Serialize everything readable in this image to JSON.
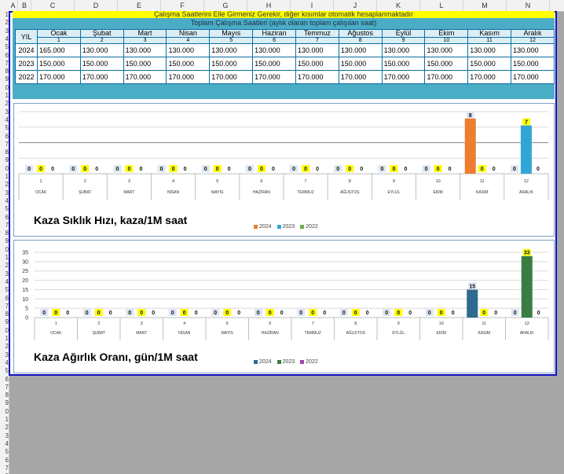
{
  "sheet": {
    "columns": [
      "A",
      "B",
      "C",
      "D",
      "E",
      "F",
      "G",
      "H",
      "I",
      "J",
      "K",
      "L",
      "M",
      "N"
    ],
    "rows": [
      "1",
      "2",
      "3",
      "4",
      "5",
      "6",
      "7",
      "8",
      "9",
      "0",
      "1",
      "2",
      "3",
      "4",
      "5",
      "6",
      "7",
      "8",
      "9",
      "0",
      "1",
      "2",
      "3",
      "4",
      "5",
      "6",
      "7",
      "8",
      "9",
      "0",
      "1",
      "2",
      "3",
      "4",
      "5",
      "6",
      "7",
      "8",
      "9",
      "0",
      "1",
      "2",
      "3",
      "4",
      "5",
      "6",
      "7",
      "8",
      "9",
      "0",
      "1",
      "2",
      "3",
      "4",
      "5",
      "6",
      "7",
      "8",
      "9"
    ]
  },
  "header": {
    "note": "Çalışma Saatlerini Elle Girmeniz Gerekir, diğer kısımlar otomatik hesaplanmaktadır",
    "subtitle": "Toplam Çalışma Saatleri (aylık olaran toplam çalışılan saat)"
  },
  "table": {
    "year_label": "YIL",
    "months": [
      "Ocak",
      "Şubat",
      "Mart",
      "Nisan",
      "Mayıs",
      "Haziran",
      "Temmuz",
      "Ağustos",
      "Eylül",
      "Ekim",
      "Kasım",
      "Aralık"
    ],
    "month_nums": [
      "1",
      "2",
      "3",
      "4",
      "5",
      "6",
      "7",
      "8",
      "9",
      "10",
      "11",
      "12"
    ],
    "rows": [
      {
        "year": "2024",
        "values": [
          "165.000",
          "130.000",
          "130.000",
          "130.000",
          "130.000",
          "130.000",
          "130.000",
          "130.000",
          "130.000",
          "130.000",
          "130.000",
          "130.000"
        ]
      },
      {
        "year": "2023",
        "values": [
          "150.000",
          "150.000",
          "150.000",
          "150.000",
          "150.000",
          "150.000",
          "150.000",
          "150.000",
          "150.000",
          "150.000",
          "150.000",
          "150.000"
        ]
      },
      {
        "year": "2022",
        "values": [
          "170.000",
          "170.000",
          "170.000",
          "170.000",
          "170.000",
          "170.000",
          "170.000",
          "170.000",
          "170.000",
          "170.000",
          "170.000",
          "170.000"
        ]
      }
    ]
  },
  "chart_data": [
    {
      "type": "bar",
      "title": "Kaza Sıklık Hızı, kaza/1M saat",
      "categories": [
        "OCAK",
        "ŞUBAT",
        "MART",
        "NİSAN",
        "MAYIS",
        "HAZİRAN",
        "TEMMUZ",
        "AĞUSTOS",
        "EYLÜL",
        "EKİM",
        "KASIM",
        "ARALIK"
      ],
      "category_nums": [
        "1",
        "2",
        "3",
        "4",
        "5",
        "6",
        "7",
        "8",
        "9",
        "10",
        "11",
        "12"
      ],
      "series": [
        {
          "name": "2024",
          "color": "#ed7d31",
          "values": [
            0,
            0,
            0,
            0,
            0,
            0,
            0,
            0,
            0,
            0,
            8,
            0
          ]
        },
        {
          "name": "2023",
          "color": "#31a6d6",
          "values": [
            0,
            0,
            0,
            0,
            0,
            0,
            0,
            0,
            0,
            0,
            0,
            7
          ]
        },
        {
          "name": "2022",
          "color": "#70ad47",
          "values": [
            0,
            0,
            0,
            0,
            0,
            0,
            0,
            0,
            0,
            0,
            0,
            0
          ]
        }
      ],
      "ylim": [
        0,
        9
      ],
      "y_ticks": [],
      "grid": true,
      "legend": "bottom"
    },
    {
      "type": "bar",
      "title": "Kaza Ağırlık Oranı, gün/1M saat",
      "categories": [
        "OCAK",
        "ŞUBAT",
        "MART",
        "NİSAN",
        "MAYIS",
        "HAZİRAN",
        "TEMMUZ",
        "AĞUSTOS",
        "EYLÜL",
        "EKİM",
        "KASIM",
        "ARALIK"
      ],
      "category_nums": [
        "1",
        "2",
        "3",
        "4",
        "5",
        "6",
        "7",
        "8",
        "9",
        "10",
        "11",
        "12"
      ],
      "series": [
        {
          "name": "2024",
          "color": "#2e6b8e",
          "values": [
            0,
            0,
            0,
            0,
            0,
            0,
            0,
            0,
            0,
            0,
            15,
            0
          ]
        },
        {
          "name": "2023",
          "color": "#3a7d44",
          "values": [
            0,
            0,
            0,
            0,
            0,
            0,
            0,
            0,
            0,
            0,
            0,
            33
          ]
        },
        {
          "name": "2022",
          "color": "#a43fb0",
          "values": [
            0,
            0,
            0,
            0,
            0,
            0,
            0,
            0,
            0,
            0,
            0,
            0
          ]
        }
      ],
      "ylim": [
        0,
        35
      ],
      "y_ticks": [
        "0",
        "5",
        "10",
        "15",
        "20",
        "25",
        "30",
        "35"
      ],
      "grid": true,
      "legend": "bottom"
    }
  ]
}
